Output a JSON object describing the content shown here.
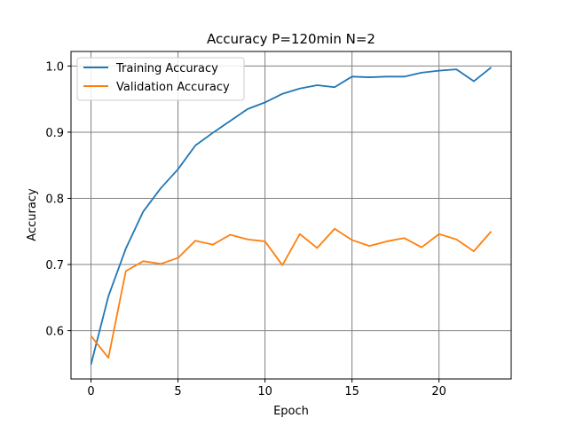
{
  "chart_data": {
    "type": "line",
    "title": "Accuracy P=120min N=2",
    "xlabel": "Epoch",
    "ylabel": "Accuracy",
    "xlim": [
      -1.15,
      24.15
    ],
    "ylim": [
      0.527,
      1.022
    ],
    "xticks": [
      0,
      5,
      10,
      15,
      20
    ],
    "yticks": [
      0.6,
      0.7,
      0.8,
      0.9,
      1.0
    ],
    "ytick_labels": [
      "0.6",
      "0.7",
      "0.8",
      "0.9",
      "1.0"
    ],
    "grid": true,
    "legend_position": "upper-left",
    "x": [
      0,
      1,
      2,
      3,
      4,
      5,
      6,
      7,
      8,
      9,
      10,
      11,
      12,
      13,
      14,
      15,
      16,
      17,
      18,
      19,
      20,
      21,
      22,
      23
    ],
    "series": [
      {
        "name": "Training Accuracy",
        "color": "#1f77b4",
        "values": [
          0.549,
          0.652,
          0.724,
          0.78,
          0.815,
          0.844,
          0.88,
          0.899,
          0.917,
          0.935,
          0.945,
          0.958,
          0.966,
          0.971,
          0.968,
          0.984,
          0.983,
          0.984,
          0.984,
          0.99,
          0.993,
          0.995,
          0.977,
          0.998
        ]
      },
      {
        "name": "Validation Accuracy",
        "color": "#ff7f0e",
        "values": [
          0.592,
          0.559,
          0.69,
          0.705,
          0.701,
          0.71,
          0.736,
          0.73,
          0.745,
          0.738,
          0.735,
          0.699,
          0.746,
          0.725,
          0.754,
          0.737,
          0.728,
          0.735,
          0.74,
          0.726,
          0.746,
          0.738,
          0.72,
          0.75
        ]
      }
    ]
  }
}
